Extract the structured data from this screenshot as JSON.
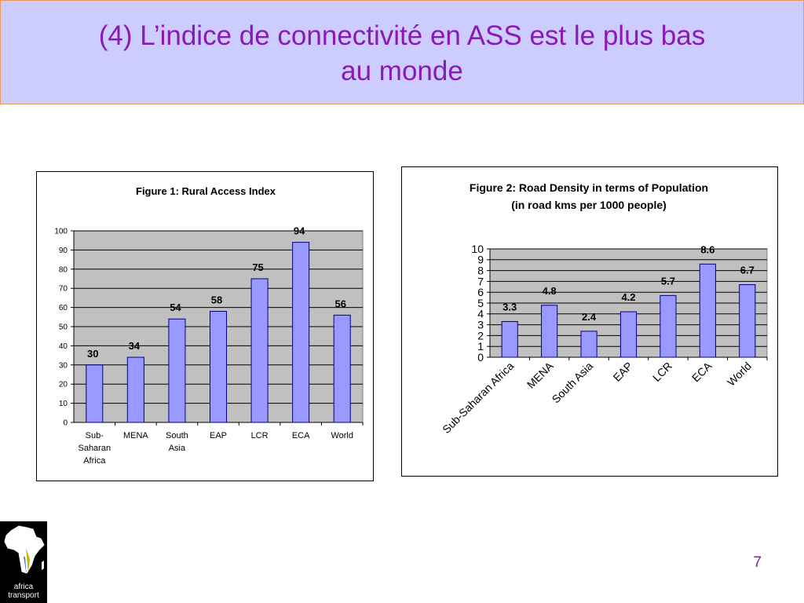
{
  "slide": {
    "title_line1": "(4) L’indice de connectivité en ASS est le plus bas",
    "title_line2": "au monde",
    "page_number": "7",
    "logo_line1": "africa",
    "logo_line2": "transport"
  },
  "colors": {
    "title": "#8a19b5",
    "title_band": "#ccccff",
    "plot_bg": "#c0c0c0",
    "bar_fill": "#9999ff",
    "bar_stroke": "#000080"
  },
  "chart_data": [
    {
      "type": "bar",
      "title": "Figure 1: Rural Access Index",
      "categories": [
        "Sub-Saharan Africa",
        "MENA",
        "South Asia",
        "EAP",
        "LCR",
        "ECA",
        "World"
      ],
      "category_lines": [
        [
          "Sub-",
          "Saharan",
          "Africa"
        ],
        [
          "MENA"
        ],
        [
          "South",
          "Asia"
        ],
        [
          "EAP"
        ],
        [
          "LCR"
        ],
        [
          "ECA"
        ],
        [
          "World"
        ]
      ],
      "values": [
        30,
        34,
        54,
        58,
        75,
        94,
        56
      ],
      "ylim": [
        0,
        100
      ],
      "yticks": [
        0,
        10,
        20,
        30,
        40,
        50,
        60,
        70,
        80,
        90,
        100
      ],
      "grid": true,
      "data_labels": true
    },
    {
      "type": "bar",
      "title": "Figure 2: Road Density in terms of Population",
      "subtitle": "(in road kms per 1000 people)",
      "categories": [
        "Sub-Saharan Africa",
        "MENA",
        "South Asia",
        "EAP",
        "LCR",
        "ECA",
        "World"
      ],
      "values": [
        3.3,
        4.8,
        2.4,
        4.2,
        5.7,
        8.6,
        6.7
      ],
      "ylim": [
        0,
        10
      ],
      "yticks": [
        0,
        1,
        2,
        3,
        4,
        5,
        6,
        7,
        8,
        9,
        10
      ],
      "grid": true,
      "data_labels": true,
      "x_tick_rotation": "rotated 45 degrees"
    }
  ]
}
